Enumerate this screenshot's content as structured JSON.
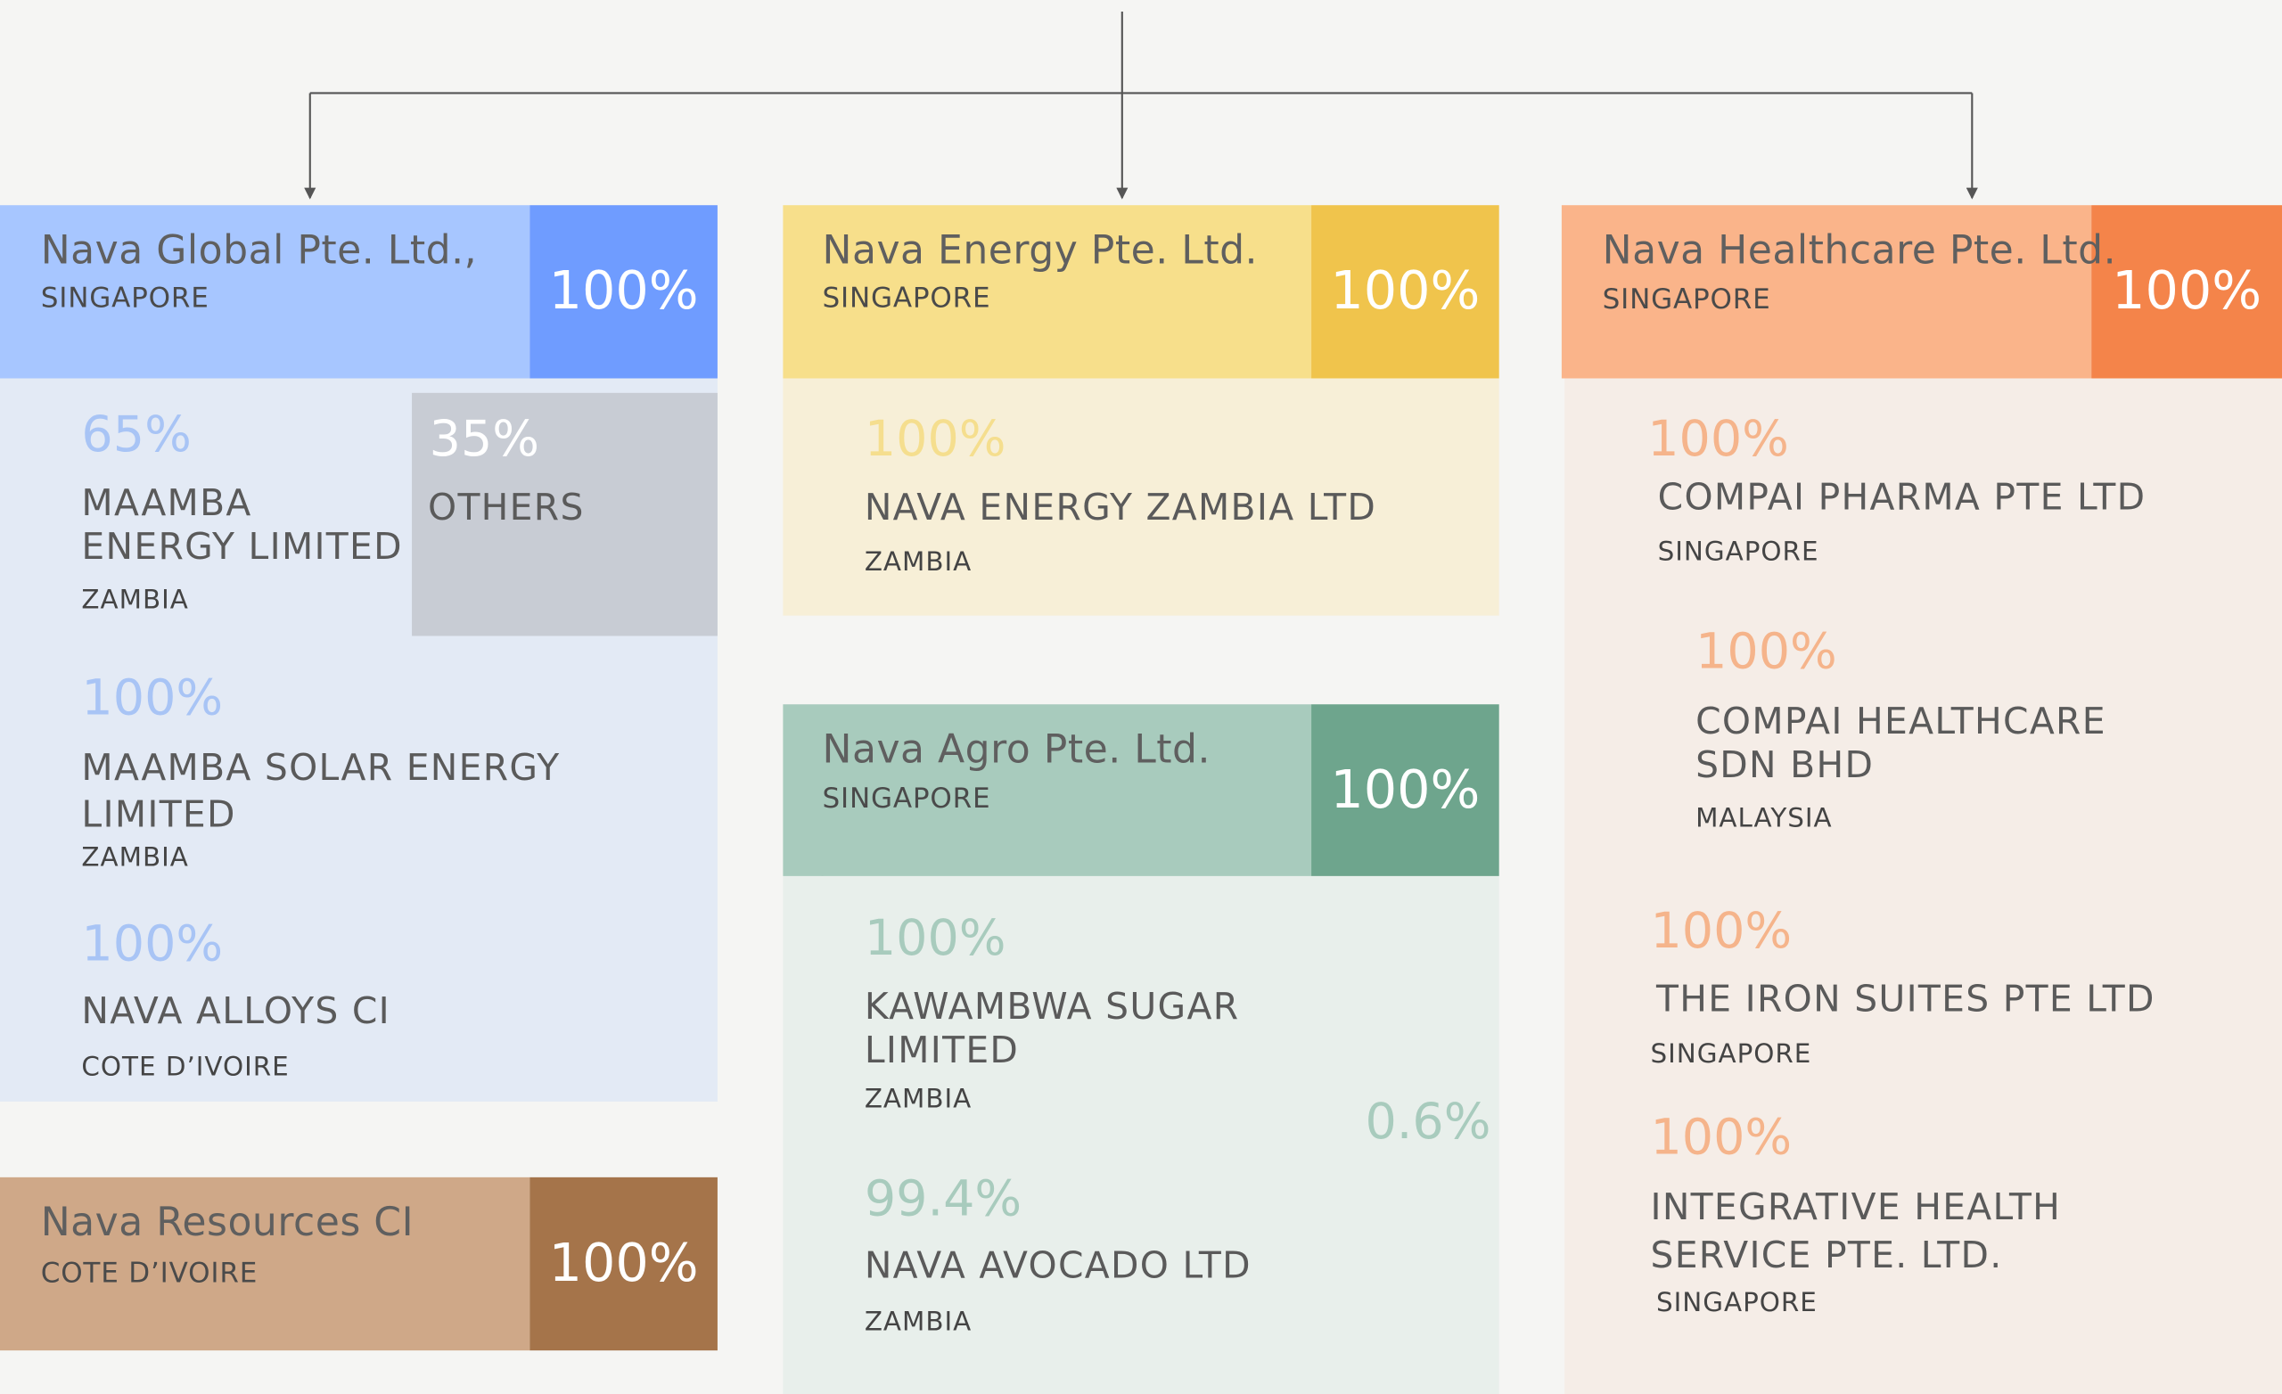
{
  "colors": {
    "global_light": "#a7c6ff",
    "global_dark": "#6f9cff",
    "global_bg": "#e3eaf5",
    "energy_light": "#f7df8b",
    "energy_dark": "#f0c44c",
    "energy_bg": "#f7efd7",
    "agro_light": "#a8cbbd",
    "agro_dark": "#6ea58d",
    "agro_bg": "#e8efeb",
    "health_light": "#fab48a",
    "health_dark": "#f4844a",
    "health_bg": "#f5ede7",
    "resources_light": "#cfa888",
    "resources_dark": "#a5744a",
    "others_bg": "#c8ccd4",
    "line": "#555555"
  },
  "global": {
    "name": "Nava Global Pte. Ltd.,",
    "country": "SINGAPORE",
    "pct": "100%",
    "subs": [
      {
        "pct": "65%",
        "name": "MAAMBA ENERGY LIMITED",
        "country": "ZAMBIA"
      },
      {
        "pct": "100%",
        "name": "MAAMBA SOLAR ENERGY LIMITED",
        "country": "ZAMBIA"
      },
      {
        "pct": "100%",
        "name": "NAVA ALLOYS CI",
        "country": "COTE D’IVOIRE"
      }
    ],
    "others": {
      "pct": "35%",
      "label": "OTHERS"
    }
  },
  "resources": {
    "name": "Nava Resources CI",
    "country": "COTE D’IVOIRE",
    "pct": "100%"
  },
  "energy": {
    "name": "Nava Energy Pte. Ltd.",
    "country": "SINGAPORE",
    "pct": "100%",
    "subs": [
      {
        "pct": "100%",
        "name": "NAVA ENERGY ZAMBIA LTD",
        "country": "ZAMBIA"
      }
    ]
  },
  "agro": {
    "name": "Nava Agro Pte. Ltd.",
    "country": "SINGAPORE",
    "pct": "100%",
    "subs": [
      {
        "pct": "100%",
        "name": "KAWAMBWA SUGAR LIMITED",
        "country": "ZAMBIA"
      },
      {
        "pct": "99.4%",
        "name": "NAVA AVOCADO LTD",
        "country": "ZAMBIA"
      }
    ],
    "cross_pct": "0.6%"
  },
  "health": {
    "name": "Nava Healthcare Pte. Ltd.",
    "country": "SINGAPORE",
    "pct": "100%",
    "subs": [
      {
        "pct": "100%",
        "name": "COMPAI PHARMA PTE LTD",
        "country": "SINGAPORE"
      },
      {
        "pct": "100%",
        "name": "COMPAI HEALTHCARE SDN BHD",
        "country": "MALAYSIA"
      },
      {
        "pct": "100%",
        "name": "THE IRON SUITES PTE LTD",
        "country": "SINGAPORE"
      },
      {
        "pct": "100%",
        "name": "INTEGRATIVE HEALTH SERVICE PTE. LTD.",
        "country": "SINGAPORE"
      }
    ]
  }
}
